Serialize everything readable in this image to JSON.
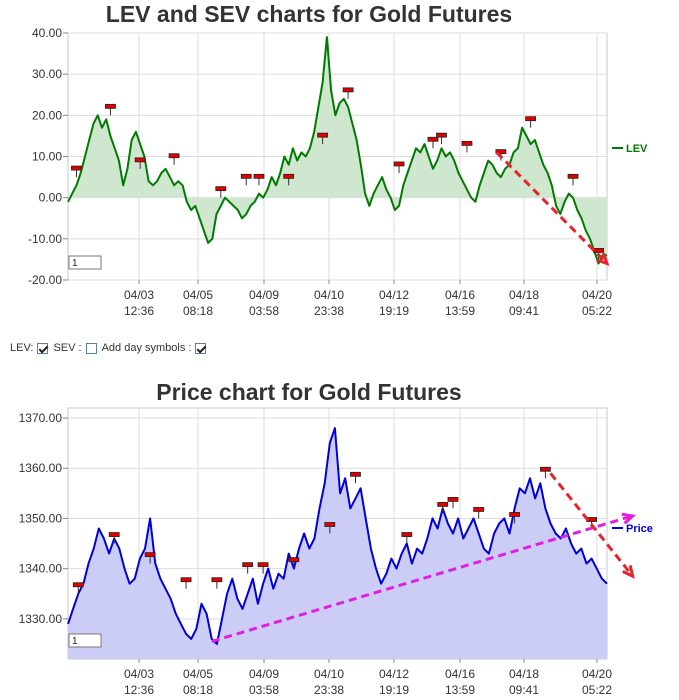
{
  "controls": {
    "lev_label": "LEV:",
    "lev_checked": true,
    "sev_label": "SEV :",
    "sev_checked": false,
    "day_symbols_label": "Add day symbols :",
    "day_symbols_checked": true
  },
  "chart_data": [
    {
      "type": "area",
      "title": "LEV and SEV charts for Gold Futures",
      "ylim": [
        -20,
        40
      ],
      "y_ticks": [
        "40.00",
        "30.00",
        "20.00",
        "10.00",
        "0.00",
        "-10.00",
        "-20.00"
      ],
      "x_ticks": [
        {
          "date": "04/03",
          "time": "12:36"
        },
        {
          "date": "04/05",
          "time": "08:18"
        },
        {
          "date": "04/09",
          "time": "03:58"
        },
        {
          "date": "04/10",
          "time": "23:38"
        },
        {
          "date": "04/12",
          "time": "19:19"
        },
        {
          "date": "04/16",
          "time": "13:59"
        },
        {
          "date": "04/18",
          "time": "09:41"
        },
        {
          "date": "04/20",
          "time": "05:22"
        }
      ],
      "zoom_value": "1",
      "series": [
        {
          "name": "LEV",
          "color": "#007a00",
          "fill": "#cfe6cf",
          "values": [
            -1,
            1,
            3,
            6,
            10,
            14,
            18,
            20,
            17,
            19,
            15,
            12,
            9,
            3,
            7,
            14,
            16,
            13,
            10,
            4,
            3,
            4,
            6,
            7,
            5,
            3,
            4,
            3,
            -1,
            -3,
            -2,
            -5,
            -8,
            -11,
            -10,
            -4,
            -2,
            0,
            -1,
            -2,
            -3,
            -5,
            -4,
            -2,
            -1,
            1,
            0,
            2,
            5,
            3,
            6,
            10,
            8,
            12,
            9,
            11,
            10,
            12,
            16,
            22,
            28,
            39,
            26,
            20,
            23,
            24,
            22,
            18,
            14,
            8,
            1,
            -2,
            1,
            3,
            5,
            2,
            0,
            -3,
            -2,
            3,
            6,
            9,
            12,
            11,
            13,
            10,
            7,
            9,
            12,
            10,
            11,
            9,
            6,
            4,
            2,
            0,
            -1,
            3,
            6,
            9,
            8,
            6,
            5,
            7,
            8,
            11,
            12,
            17,
            15,
            13,
            14,
            11,
            8,
            6,
            3,
            -2,
            -4,
            -1,
            1,
            0,
            -3,
            -5,
            -8,
            -10,
            -13,
            -16,
            -14,
            -14
          ]
        }
      ],
      "markers": [
        {
          "index": 2,
          "value": 5
        },
        {
          "index": 10,
          "value": 20
        },
        {
          "index": 17,
          "value": 7
        },
        {
          "index": 25,
          "value": 8
        },
        {
          "index": 36,
          "value": 0
        },
        {
          "index": 42,
          "value": 3
        },
        {
          "index": 45,
          "value": 3
        },
        {
          "index": 52,
          "value": 3
        },
        {
          "index": 60,
          "value": 13
        },
        {
          "index": 66,
          "value": 24
        },
        {
          "index": 78,
          "value": 6
        },
        {
          "index": 86,
          "value": 12
        },
        {
          "index": 88,
          "value": 13
        },
        {
          "index": 94,
          "value": 11
        },
        {
          "index": 102,
          "value": 9
        },
        {
          "index": 109,
          "value": 17
        },
        {
          "index": 119,
          "value": 3
        },
        {
          "index": 125,
          "value": -15
        }
      ],
      "trend_arrows": [
        {
          "color": "#e8232b",
          "from": [
            101,
            11
          ],
          "to": [
            127,
            -16
          ]
        }
      ],
      "legend_position": "right",
      "grid": true
    },
    {
      "type": "area",
      "title": "Price chart for Gold Futures",
      "ylim": [
        1322,
        1372
      ],
      "y_ticks": [
        "1370.00",
        "1360.00",
        "1350.00",
        "1340.00",
        "1330.00"
      ],
      "x_ticks": [
        {
          "date": "04/03",
          "time": "12:36"
        },
        {
          "date": "04/05",
          "time": "08:18"
        },
        {
          "date": "04/09",
          "time": "03:58"
        },
        {
          "date": "04/10",
          "time": "23:38"
        },
        {
          "date": "04/12",
          "time": "19:19"
        },
        {
          "date": "04/16",
          "time": "13:59"
        },
        {
          "date": "04/18",
          "time": "09:41"
        },
        {
          "date": "04/20",
          "time": "05:22"
        }
      ],
      "zoom_value": "1",
      "series": [
        {
          "name": "Price",
          "color": "#0000dd",
          "fill": "#cbcdf6",
          "values": [
            1329,
            1332,
            1335,
            1337,
            1341,
            1344,
            1348,
            1346,
            1343,
            1346,
            1344,
            1340,
            1337,
            1338,
            1342,
            1344,
            1350,
            1341,
            1338,
            1336,
            1334,
            1331,
            1329,
            1327,
            1326,
            1328,
            1333,
            1331,
            1326,
            1325,
            1330,
            1335,
            1338,
            1334,
            1332,
            1335,
            1338,
            1333,
            1337,
            1340,
            1336,
            1339,
            1338,
            1343,
            1340,
            1344,
            1347,
            1344,
            1346,
            1352,
            1357,
            1365,
            1368,
            1355,
            1358,
            1352,
            1354,
            1356,
            1350,
            1344,
            1340,
            1337,
            1339,
            1342,
            1340,
            1343,
            1345,
            1341,
            1344,
            1343,
            1346,
            1350,
            1348,
            1352,
            1349,
            1347,
            1350,
            1346,
            1348,
            1350,
            1347,
            1344,
            1343,
            1347,
            1349,
            1350,
            1347,
            1352,
            1356,
            1355,
            1358,
            1354,
            1357,
            1352,
            1349,
            1347,
            1346,
            1348,
            1345,
            1343,
            1344,
            1341,
            1342,
            1340,
            1338,
            1337
          ]
        }
      ],
      "markers": [
        {
          "index": 2,
          "value": 1335
        },
        {
          "index": 9,
          "value": 1345
        },
        {
          "index": 16,
          "value": 1341
        },
        {
          "index": 23,
          "value": 1336
        },
        {
          "index": 29,
          "value": 1336
        },
        {
          "index": 35,
          "value": 1339
        },
        {
          "index": 38,
          "value": 1339
        },
        {
          "index": 44,
          "value": 1340
        },
        {
          "index": 51,
          "value": 1347
        },
        {
          "index": 56,
          "value": 1357
        },
        {
          "index": 66,
          "value": 1345
        },
        {
          "index": 73,
          "value": 1351
        },
        {
          "index": 75,
          "value": 1352
        },
        {
          "index": 80,
          "value": 1350
        },
        {
          "index": 87,
          "value": 1349
        },
        {
          "index": 93,
          "value": 1358
        },
        {
          "index": 102,
          "value": 1348
        }
      ],
      "trend_arrows": [
        {
          "color": "#e020e0",
          "from": [
            28,
            1325.5
          ],
          "to": [
            110,
            1350.5
          ]
        },
        {
          "color": "#e8232b",
          "from": [
            94,
            1359
          ],
          "to": [
            110,
            1338.5
          ]
        }
      ],
      "legend_position": "right",
      "grid": true
    }
  ]
}
